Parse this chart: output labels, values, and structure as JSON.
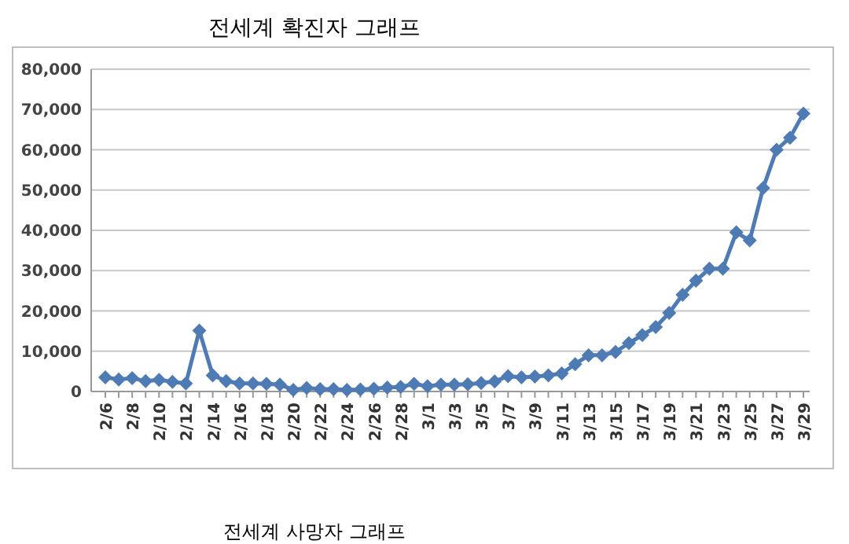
{
  "chart_data": {
    "type": "line",
    "title": "전세계 확진자 그래프",
    "categories": [
      "2/6",
      null,
      "2/8",
      null,
      "2/10",
      null,
      "2/12",
      null,
      "2/14",
      null,
      "2/16",
      null,
      "2/18",
      null,
      "2/20",
      null,
      "2/22",
      null,
      "2/24",
      null,
      "2/26",
      null,
      "2/28",
      null,
      "3/1",
      null,
      "3/3",
      null,
      "3/5",
      null,
      "3/7",
      null,
      "3/9",
      null,
      "3/11",
      null,
      "3/13",
      null,
      "3/15",
      null,
      "3/17",
      null,
      "3/19",
      null,
      "3/21",
      null,
      "3/23",
      null,
      "3/25",
      null,
      "3/27",
      null,
      "3/29"
    ],
    "series": [
      {
        "color": "#4f7bb5",
        "values": [
          3500,
          3000,
          3300,
          2600,
          2900,
          2400,
          2000,
          15100,
          4000,
          2600,
          2000,
          2000,
          1900,
          1700,
          400,
          900,
          600,
          600,
          400,
          500,
          700,
          1000,
          1100,
          1900,
          1300,
          1700,
          1700,
          1800,
          2100,
          2500,
          3800,
          3500,
          3700,
          4000,
          4500,
          6800,
          9000,
          9000,
          9800,
          12000,
          14000,
          16000,
          19500,
          24000,
          27500,
          30500,
          30500,
          39500,
          37500,
          50500,
          60000,
          63000,
          69000
        ]
      }
    ],
    "ylim": [
      0,
      80000
    ],
    "yticks": [
      {
        "value": 0,
        "label": "0"
      },
      {
        "value": 10000,
        "label": "10,000"
      },
      {
        "value": 20000,
        "label": "20,000"
      },
      {
        "value": 30000,
        "label": "30,000"
      },
      {
        "value": 40000,
        "label": "40,000"
      },
      {
        "value": 50000,
        "label": "50,000"
      },
      {
        "value": 60000,
        "label": "60,000"
      },
      {
        "value": 70000,
        "label": "70,000"
      },
      {
        "value": 80000,
        "label": "80,000"
      }
    ],
    "grid": "y",
    "marker": "diamond",
    "line_style": "solid",
    "annotations": [
      "전세계 사망자 그래프"
    ]
  }
}
